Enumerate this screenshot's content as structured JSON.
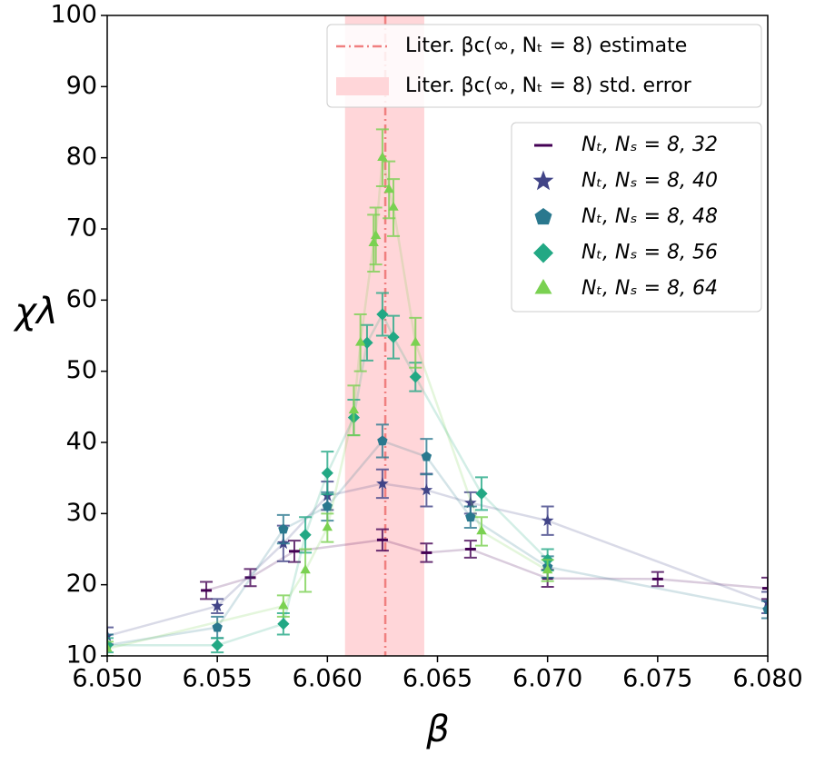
{
  "chart_data": {
    "type": "errorbar_scatter",
    "xlabel": "β",
    "ylabel": "χλ",
    "xlim": [
      6.05,
      6.08
    ],
    "ylim": [
      10,
      100
    ],
    "xticks": [
      {
        "value": 6.05,
        "label": "6.050"
      },
      {
        "value": 6.055,
        "label": "6.055"
      },
      {
        "value": 6.06,
        "label": "6.060"
      },
      {
        "value": 6.065,
        "label": "6.065"
      },
      {
        "value": 6.07,
        "label": "6.070"
      },
      {
        "value": 6.075,
        "label": "6.075"
      },
      {
        "value": 6.08,
        "label": "6.080"
      }
    ],
    "yticks": [
      10,
      20,
      30,
      40,
      50,
      60,
      70,
      80,
      90,
      100
    ],
    "reference_line": {
      "x": 6.06263,
      "label": "Liter. βc(∞, Nₜ = 8) estimate",
      "color": "#f08080"
    },
    "reference_band": {
      "xlim": [
        6.0608,
        6.0644
      ],
      "label": "Liter. βc(∞, Nₜ = 8) std. error",
      "color": "#ffd6d9"
    },
    "series": [
      {
        "name": "Nₜ, Nₛ = 8, 32",
        "color": "#440154",
        "marker": "dash",
        "x": [
          6.0545,
          6.0565,
          6.0585,
          6.0625,
          6.0645,
          6.0665,
          6.07,
          6.075,
          6.08
        ],
        "values": [
          19.2,
          21,
          24.7,
          26.3,
          24.5,
          25,
          20.9,
          20.8,
          19.5
        ],
        "errors": [
          1.2,
          1.2,
          1.5,
          1.5,
          1.3,
          1.2,
          1.2,
          1,
          1.5
        ]
      },
      {
        "name": "Nₜ, Nₛ = 8, 40",
        "color": "#414487",
        "marker": "star",
        "x": [
          6.05,
          6.055,
          6.058,
          6.06,
          6.0625,
          6.0645,
          6.0665,
          6.07,
          6.08
        ],
        "values": [
          12.8,
          17,
          25.8,
          32.5,
          34.2,
          33.3,
          31.5,
          29,
          17.5
        ],
        "errors": [
          1.2,
          1,
          2.5,
          2,
          2,
          2.3,
          1.5,
          2,
          1.5
        ]
      },
      {
        "name": "Nₜ, Nₛ = 8, 48",
        "color": "#2a788e",
        "marker": "pentagon",
        "x": [
          6.05,
          6.055,
          6.058,
          6.06,
          6.0625,
          6.0645,
          6.0665,
          6.07,
          6.08
        ],
        "values": [
          11.5,
          14,
          27.8,
          31,
          40.2,
          38,
          29.5,
          22.5,
          16.5
        ],
        "errors": [
          1.5,
          1.5,
          2,
          2,
          2.3,
          2.5,
          1.5,
          1.5,
          1.2
        ]
      },
      {
        "name": "Nₜ, Nₛ = 8, 56",
        "color": "#22a884",
        "marker": "diamond",
        "x": [
          6.05,
          6.055,
          6.058,
          6.059,
          6.06,
          6.0612,
          6.0618,
          6.0625,
          6.063,
          6.064,
          6.067,
          6.07
        ],
        "values": [
          11.5,
          11.5,
          14.5,
          27,
          35.7,
          43.5,
          54,
          58,
          54.8,
          49.2,
          32.8,
          23.5
        ],
        "errors": [
          1,
          1,
          1.5,
          2.5,
          3,
          2.5,
          2.5,
          3,
          3,
          2,
          2.3,
          1.5
        ]
      },
      {
        "name": "Nₜ, Nₛ = 8, 64",
        "color": "#7ad151",
        "marker": "triangle",
        "x": [
          6.05,
          6.058,
          6.059,
          6.06,
          6.0612,
          6.0615,
          6.0621,
          6.0622,
          6.0625,
          6.0628,
          6.063,
          6.064,
          6.067,
          6.07
        ],
        "values": [
          11,
          17,
          22,
          28,
          44.5,
          54,
          68,
          69,
          80,
          75.5,
          73,
          54,
          27.5,
          22
        ],
        "errors": [
          1,
          1.5,
          3,
          2,
          3.5,
          4,
          4,
          4,
          4,
          4,
          4,
          3.5,
          2,
          1.5
        ]
      }
    ]
  }
}
